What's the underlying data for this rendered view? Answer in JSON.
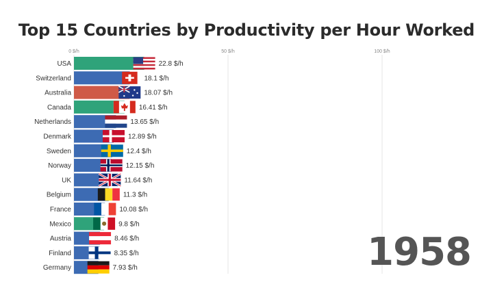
{
  "chart_data": {
    "type": "bar",
    "orientation": "horizontal",
    "title": "Top 15 Countries by Productivity per Hour Worked",
    "year": "1958",
    "unit_suffix": " $/h",
    "xlim": [
      0,
      100
    ],
    "xticks": [
      {
        "value": 0,
        "label": "0 $/h"
      },
      {
        "value": 50,
        "label": "50 $/h"
      },
      {
        "value": 100,
        "label": "100 $/h"
      }
    ],
    "grid": true,
    "categories": [
      "USA",
      "Switzerland",
      "Australia",
      "Canada",
      "Netherlands",
      "Denmark",
      "Sweden",
      "Norway",
      "UK",
      "Belgium",
      "France",
      "Mexico",
      "Austria",
      "Finland",
      "Germany"
    ],
    "values": [
      22.8,
      18.1,
      18.07,
      16.41,
      13.65,
      12.89,
      12.4,
      12.15,
      11.64,
      11.3,
      10.08,
      9.8,
      8.46,
      8.35,
      7.93
    ],
    "value_labels": [
      "22.8 $/h",
      "18.1 $/h",
      "18.07 $/h",
      "16.41 $/h",
      "13.65 $/h",
      "12.89 $/h",
      "12.4 $/h",
      "12.15 $/h",
      "11.64 $/h",
      "11.3 $/h",
      "10.08 $/h",
      "9.8 $/h",
      "8.46 $/h",
      "8.35 $/h",
      "7.93 $/h"
    ],
    "bar_colors": [
      "#2fa37a",
      "#3d6bb3",
      "#cf5a47",
      "#2fa37a",
      "#3d6bb3",
      "#3d6bb3",
      "#3d6bb3",
      "#3d6bb3",
      "#3d6bb3",
      "#3d6bb3",
      "#3d6bb3",
      "#2fa37a",
      "#3d6bb3",
      "#3d6bb3",
      "#3d6bb3"
    ],
    "flags": [
      "flag-usa-icon",
      "flag-switzerland-icon",
      "flag-australia-icon",
      "flag-canada-icon",
      "flag-netherlands-icon",
      "flag-denmark-icon",
      "flag-sweden-icon",
      "flag-norway-icon",
      "flag-uk-icon",
      "flag-belgium-icon",
      "flag-france-icon",
      "flag-mexico-icon",
      "flag-austria-icon",
      "flag-finland-icon",
      "flag-germany-icon"
    ]
  }
}
